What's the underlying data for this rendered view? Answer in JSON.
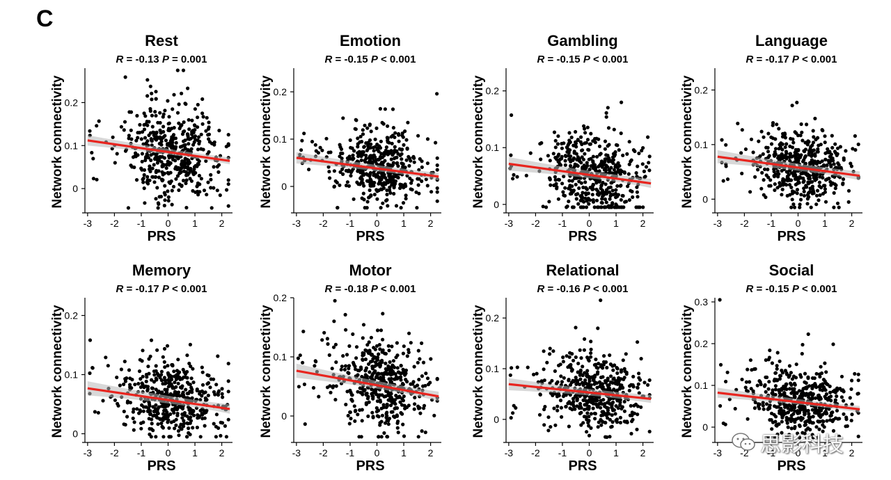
{
  "figure": {
    "panel_letter": "C",
    "watermark": "思影科技"
  },
  "chart_data": [
    {
      "type": "scatter",
      "title": "Rest",
      "stats": {
        "r_label": "R",
        "r_value": "= -0.13",
        "p_label": "P",
        "p_value": "= 0.001"
      },
      "xlabel": "PRS",
      "ylabel": "Network connectivity",
      "xlim": [
        -3.1,
        2.4
      ],
      "ylim": [
        -0.05,
        0.28
      ],
      "xticks": [
        -3,
        -2,
        -1,
        0,
        1,
        2
      ],
      "yticks": [
        0,
        0.1,
        0.2
      ],
      "fit": {
        "intercept": 0.085,
        "slope": -0.009
      },
      "point_sd": 0.055,
      "seed": 11
    },
    {
      "type": "scatter",
      "title": "Emotion",
      "stats": {
        "r_label": "R",
        "r_value": "= -0.15",
        "p_label": "P",
        "p_value": "< 0.001"
      },
      "xlabel": "PRS",
      "ylabel": "Network connectivity",
      "xlim": [
        -3.1,
        2.4
      ],
      "ylim": [
        -0.05,
        0.25
      ],
      "xticks": [
        -3,
        -2,
        -1,
        0,
        1,
        2
      ],
      "yticks": [
        0,
        0.1,
        0.2
      ],
      "fit": {
        "intercept": 0.038,
        "slope": -0.0075
      },
      "point_sd": 0.037,
      "seed": 23
    },
    {
      "type": "scatter",
      "title": "Gambling",
      "stats": {
        "r_label": "R",
        "r_value": "= -0.15",
        "p_label": "P",
        "p_value": "< 0.001"
      },
      "xlabel": "PRS",
      "ylabel": "Network connectivity",
      "xlim": [
        -3.1,
        2.4
      ],
      "ylim": [
        -0.01,
        0.24
      ],
      "xticks": [
        -3,
        -2,
        -1,
        0,
        1,
        2
      ],
      "yticks": [
        0,
        0.1,
        0.2
      ],
      "fit": {
        "intercept": 0.052,
        "slope": -0.0065
      },
      "point_sd": 0.035,
      "seed": 37
    },
    {
      "type": "scatter",
      "title": "Language",
      "stats": {
        "r_label": "R",
        "r_value": "= -0.17",
        "p_label": "P",
        "p_value": "< 0.001"
      },
      "xlabel": "PRS",
      "ylabel": "Network connectivity",
      "xlim": [
        -3.1,
        2.4
      ],
      "ylim": [
        -0.02,
        0.24
      ],
      "xticks": [
        -3,
        -2,
        -1,
        0,
        1,
        2
      ],
      "yticks": [
        0,
        0.1,
        0.2
      ],
      "fit": {
        "intercept": 0.058,
        "slope": -0.0066
      },
      "point_sd": 0.033,
      "seed": 41
    },
    {
      "type": "scatter",
      "title": "Memory",
      "stats": {
        "r_label": "R",
        "r_value": "= -0.17",
        "p_label": "P",
        "p_value": "< 0.001"
      },
      "xlabel": "PRS",
      "ylabel": "Network connectivity",
      "xlim": [
        -3.1,
        2.4
      ],
      "ylim": [
        -0.01,
        0.23
      ],
      "xticks": [
        -3,
        -2,
        -1,
        0,
        1,
        2
      ],
      "yticks": [
        0,
        0.1,
        0.2
      ],
      "fit": {
        "intercept": 0.057,
        "slope": -0.0066
      },
      "point_sd": 0.033,
      "seed": 53
    },
    {
      "type": "scatter",
      "title": "Motor",
      "stats": {
        "r_label": "R",
        "r_value": "= -0.18",
        "p_label": "P",
        "p_value": "< 0.001"
      },
      "xlabel": "PRS",
      "ylabel": "Network connectivity",
      "xlim": [
        -3.1,
        2.4
      ],
      "ylim": [
        -0.04,
        0.2
      ],
      "xticks": [
        -3,
        -2,
        -1,
        0,
        1,
        2
      ],
      "yticks": [
        0,
        0.1,
        0.2
      ],
      "fit": {
        "intercept": 0.052,
        "slope": -0.0082
      },
      "point_sd": 0.036,
      "seed": 67
    },
    {
      "type": "scatter",
      "title": "Relational",
      "stats": {
        "r_label": "R",
        "r_value": "= -0.16",
        "p_label": "P",
        "p_value": "< 0.001"
      },
      "xlabel": "PRS",
      "ylabel": "Network connectivity",
      "xlim": [
        -3.1,
        2.4
      ],
      "ylim": [
        -0.04,
        0.24
      ],
      "xticks": [
        -3,
        -2,
        -1,
        0,
        1,
        2
      ],
      "yticks": [
        0,
        0.1,
        0.2
      ],
      "fit": {
        "intercept": 0.053,
        "slope": -0.0055
      },
      "point_sd": 0.035,
      "seed": 79
    },
    {
      "type": "scatter",
      "title": "Social",
      "stats": {
        "r_label": "R",
        "r_value": "= -0.15",
        "p_label": "P",
        "p_value": "< 0.001"
      },
      "xlabel": "PRS",
      "ylabel": "Network connectivity",
      "xlim": [
        -3.1,
        2.4
      ],
      "ylim": [
        -0.03,
        0.31
      ],
      "xticks": [
        -3,
        -2,
        -1,
        0,
        1,
        2
      ],
      "yticks": [
        0,
        0.1,
        0.2,
        0.3
      ],
      "fit": {
        "intercept": 0.06,
        "slope": -0.0075
      },
      "point_sd": 0.042,
      "seed": 97
    }
  ]
}
